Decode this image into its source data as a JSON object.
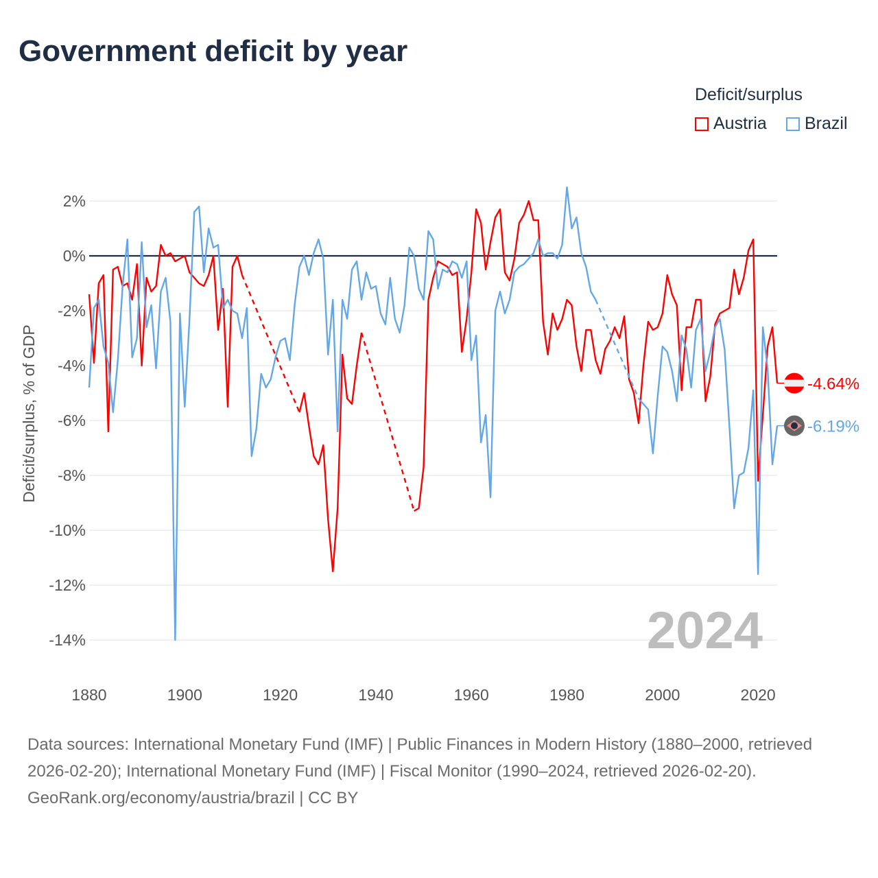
{
  "title": "Government deficit by year",
  "legend": {
    "title": "Deficit/surplus",
    "items": [
      {
        "label": "Austria",
        "color": "#ff0000"
      },
      {
        "label": "Brazil",
        "color": "#63a7e8"
      }
    ]
  },
  "year_watermark": "2024",
  "footer": {
    "sources": "Data sources: International Monetary Fund (IMF) | Public Finances in Modern History (1880–2000, retrieved 2026-02-20); International Monetary Fund (IMF) | Fiscal Monitor (1990–2024, retrieved 2026-02-20).",
    "credit": "GeoRank.org/economy/austria/brazil | CC BY"
  },
  "chart_data": {
    "type": "line",
    "title": "Government deficit by year",
    "xlabel": "",
    "ylabel": "Deficit/surplus, % of GDP",
    "xlim": [
      1880,
      2024
    ],
    "ylim": [
      -14,
      2
    ],
    "x_ticks": [
      "1880",
      "1900",
      "1920",
      "1940",
      "1960",
      "1980",
      "2000",
      "2020"
    ],
    "y_ticks": [
      "2%",
      "0%",
      "-2%",
      "-4%",
      "-6%",
      "-8%",
      "-10%",
      "-12%",
      "-14%"
    ],
    "grid": true,
    "legend_position": "top-right",
    "start_year": 1880,
    "series": [
      {
        "name": "Austria",
        "color": "#ff0000",
        "end_label": "-4.64%",
        "values": [
          -1.4,
          -3.9,
          -1.0,
          -0.7,
          -6.4,
          -0.5,
          -0.4,
          -1.1,
          -1.0,
          -1.6,
          -0.3,
          -4.0,
          -0.8,
          -1.3,
          -1.1,
          0.4,
          0.0,
          0.1,
          -0.2,
          -0.1,
          0.0,
          -0.6,
          -0.8,
          -1.0,
          -1.1,
          -0.7,
          0.0,
          -2.7,
          -1.2,
          -5.5,
          -0.4,
          0.0,
          -0.7,
          null,
          null,
          null,
          null,
          null,
          null,
          null,
          null,
          null,
          null,
          null,
          -5.7,
          -5.0,
          -6.2,
          -7.3,
          -7.6,
          -6.9,
          -9.6,
          -11.5,
          -9.2,
          -3.6,
          -5.2,
          -5.4,
          -4.0,
          -2.8,
          null,
          null,
          null,
          null,
          null,
          null,
          null,
          null,
          null,
          null,
          -9.3,
          -9.2,
          -7.7,
          -1.6,
          -0.8,
          -0.2,
          -0.3,
          -0.4,
          -0.7,
          -0.6,
          -3.5,
          -2.3,
          -0.6,
          1.7,
          1.2,
          -0.5,
          0.5,
          1.4,
          1.7,
          -0.6,
          -0.9,
          -0.1,
          1.2,
          1.5,
          2.0,
          1.3,
          1.3,
          -2.4,
          -3.6,
          -2.1,
          -2.7,
          -2.3,
          -1.6,
          -1.8,
          -3.3,
          -4.2,
          -2.7,
          -2.7,
          -3.8,
          -4.3,
          -3.4,
          -3.1,
          -2.6,
          -3.0,
          -2.2,
          -4.5,
          -5.0,
          -6.1,
          -4.0,
          -2.4,
          -2.7,
          -2.6,
          -2.1,
          -0.7,
          -1.4,
          -1.8,
          -4.9,
          -2.6,
          -2.6,
          -1.6,
          -1.6,
          -5.3,
          -4.4,
          -2.5,
          -2.1,
          -2.0,
          -1.9,
          -0.5,
          -1.4,
          -0.8,
          0.2,
          0.6,
          -8.2,
          -5.8,
          -3.3,
          -2.6,
          -4.64
        ]
      },
      {
        "name": "Brazil",
        "color": "#63a7e8",
        "end_label": "-6.19%",
        "values": [
          -4.8,
          -1.9,
          -1.6,
          -3.3,
          -3.9,
          -5.7,
          -3.8,
          -1.1,
          0.6,
          -3.7,
          -3.0,
          0.5,
          -2.6,
          -1.8,
          -4.1,
          -1.3,
          -0.8,
          -2.4,
          -14.0,
          -2.1,
          -5.5,
          -2.3,
          1.6,
          1.8,
          -0.6,
          1.0,
          0.3,
          0.4,
          -1.9,
          -1.6,
          -2.0,
          -2.1,
          -3.0,
          -1.9,
          -7.3,
          -6.3,
          -4.3,
          -4.8,
          -4.5,
          -3.7,
          -3.1,
          -3.0,
          -3.8,
          -1.8,
          -0.4,
          0.0,
          -0.7,
          0.1,
          0.6,
          -0.1,
          -3.6,
          -1.6,
          -6.4,
          -1.6,
          -2.3,
          -0.5,
          -0.2,
          -1.6,
          -0.6,
          -1.2,
          -1.1,
          -2.1,
          -2.5,
          -0.8,
          -2.3,
          -2.8,
          -1.8,
          0.3,
          0.0,
          -1.2,
          -1.6,
          0.9,
          0.6,
          -1.2,
          -0.5,
          -0.6,
          -0.2,
          -0.3,
          -0.8,
          -0.2,
          -3.8,
          -2.9,
          -6.8,
          -5.8,
          -8.8,
          -2.0,
          -1.3,
          -2.1,
          -1.6,
          -0.6,
          -0.4,
          -0.3,
          -0.1,
          0.1,
          0.6,
          0.0,
          0.1,
          0.1,
          -0.1,
          0.4,
          2.5,
          1.0,
          1.4,
          0.1,
          -0.4,
          -1.3,
          -1.6,
          null,
          null,
          null,
          null,
          null,
          null,
          null,
          null,
          -5.2,
          -5.4,
          -5.6,
          -7.2,
          -5.1,
          -3.3,
          -3.5,
          -4.2,
          -5.3,
          -2.9,
          -3.4,
          -4.8,
          -2.7,
          -2.3,
          -4.2,
          -3.5,
          -2.6,
          -2.3,
          -3.4,
          -6.2,
          -9.2,
          -8.0,
          -7.9,
          -7.0,
          -4.9,
          -11.6,
          -2.6,
          -4.1,
          -7.6,
          -6.19
        ]
      }
    ]
  }
}
